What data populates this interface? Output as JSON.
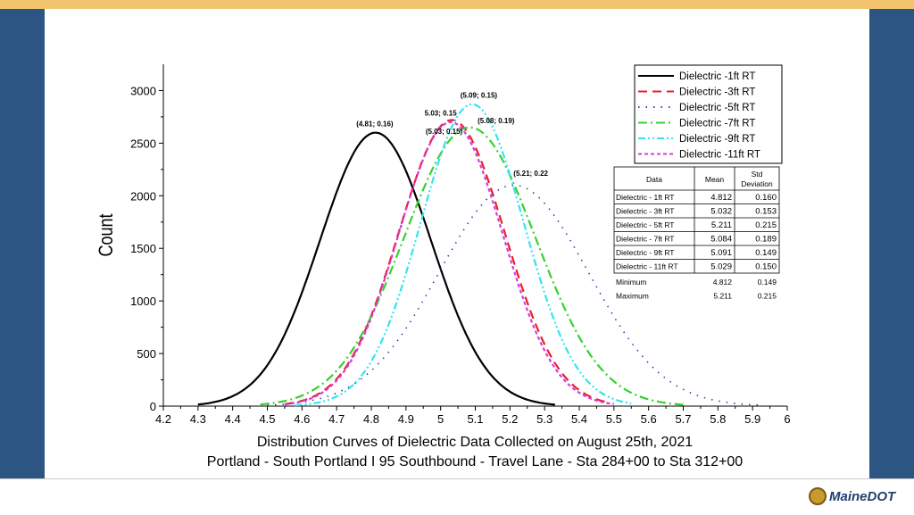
{
  "chart_data": {
    "type": "line",
    "title": "",
    "caption_lines": [
      "Distribution Curves of Dielectric Data Collected on August 25th, 2021",
      "Portland - South Portland I 95 Southbound - Travel Lane - Sta 284+00 to Sta 312+00"
    ],
    "xlabel": "",
    "ylabel": "Count",
    "xlim": [
      4.2,
      6
    ],
    "ylim": [
      0,
      3250
    ],
    "x_ticks": [
      "4.2",
      "4.3",
      "4.4",
      "4.5",
      "4.6",
      "4.7",
      "4.8",
      "4.9",
      "5",
      "5.1",
      "5.2",
      "5.3",
      "5.4",
      "5.5",
      "5.6",
      "5.7",
      "5.8",
      "5.9",
      "6"
    ],
    "y_ticks": [
      "0",
      "500",
      "1000",
      "1500",
      "2000",
      "2500",
      "3000"
    ],
    "grid": false,
    "legend_position": "top-right",
    "series": [
      {
        "name": "Dielectric -1ft RT",
        "mean": 4.812,
        "std": 0.16,
        "peak": 2600,
        "x_range": [
          4.3,
          5.33
        ],
        "color": "#000000",
        "dash": "solid"
      },
      {
        "name": "Dielectric -3ft RT",
        "mean": 5.032,
        "std": 0.153,
        "peak": 2720,
        "x_range": [
          4.55,
          5.48
        ],
        "color": "#e8202a",
        "dash": "dash"
      },
      {
        "name": "Dielectric -5ft RT",
        "mean": 5.211,
        "std": 0.215,
        "peak": 2100,
        "x_range": [
          4.5,
          5.92
        ],
        "color": "#3a3aa8",
        "dash": "dot"
      },
      {
        "name": "Dielectric -7ft RT",
        "mean": 5.084,
        "std": 0.189,
        "peak": 2650,
        "x_range": [
          4.48,
          5.7
        ],
        "color": "#35d12f",
        "dash": "dashdot"
      },
      {
        "name": "Dielectric -9ft RT",
        "mean": 5.091,
        "std": 0.149,
        "peak": 2870,
        "x_range": [
          4.58,
          5.55
        ],
        "color": "#33e5ef",
        "dash": "dashdotdot"
      },
      {
        "name": "Dielectric -11ft RT",
        "mean": 5.029,
        "std": 0.15,
        "peak": 2700,
        "x_range": [
          4.55,
          5.5
        ],
        "color": "#d93ad9",
        "dash": "shortdash"
      }
    ],
    "annotations": [
      {
        "text": "(4.81; 0.16)",
        "x": 4.81,
        "y": 2660
      },
      {
        "text": "5.03; 0.15",
        "x": 5.0,
        "y": 2760
      },
      {
        "text": "(5.09; 0.15)",
        "x": 5.11,
        "y": 2930
      },
      {
        "text": "(5.08; 0.19)",
        "x": 5.16,
        "y": 2690
      },
      {
        "text": "(5.03; 0.15)",
        "x": 5.01,
        "y": 2590
      },
      {
        "text": "(5.21; 0.22",
        "x": 5.26,
        "y": 2190
      }
    ],
    "stats_table": {
      "headers": [
        "Data",
        "Mean",
        "Std Deviation"
      ],
      "rows": [
        [
          "Dielectric - 1ft RT",
          "4.812",
          "0.160"
        ],
        [
          "Dielectric - 3ft RT",
          "5.032",
          "0.153"
        ],
        [
          "Dielectric - 5ft RT",
          "5.211",
          "0.215"
        ],
        [
          "Dielectric - 7ft RT",
          "5.084",
          "0.189"
        ],
        [
          "Dielectric - 9ft RT",
          "5.091",
          "0.149"
        ],
        [
          "Dielectric - 11ft RT",
          "5.029",
          "0.150"
        ]
      ],
      "summary": [
        [
          "Minimum",
          "4.812",
          "0.149"
        ],
        [
          "Maximum",
          "5.211",
          "0.215"
        ]
      ]
    }
  },
  "logo": {
    "text": "MaineDOT"
  }
}
